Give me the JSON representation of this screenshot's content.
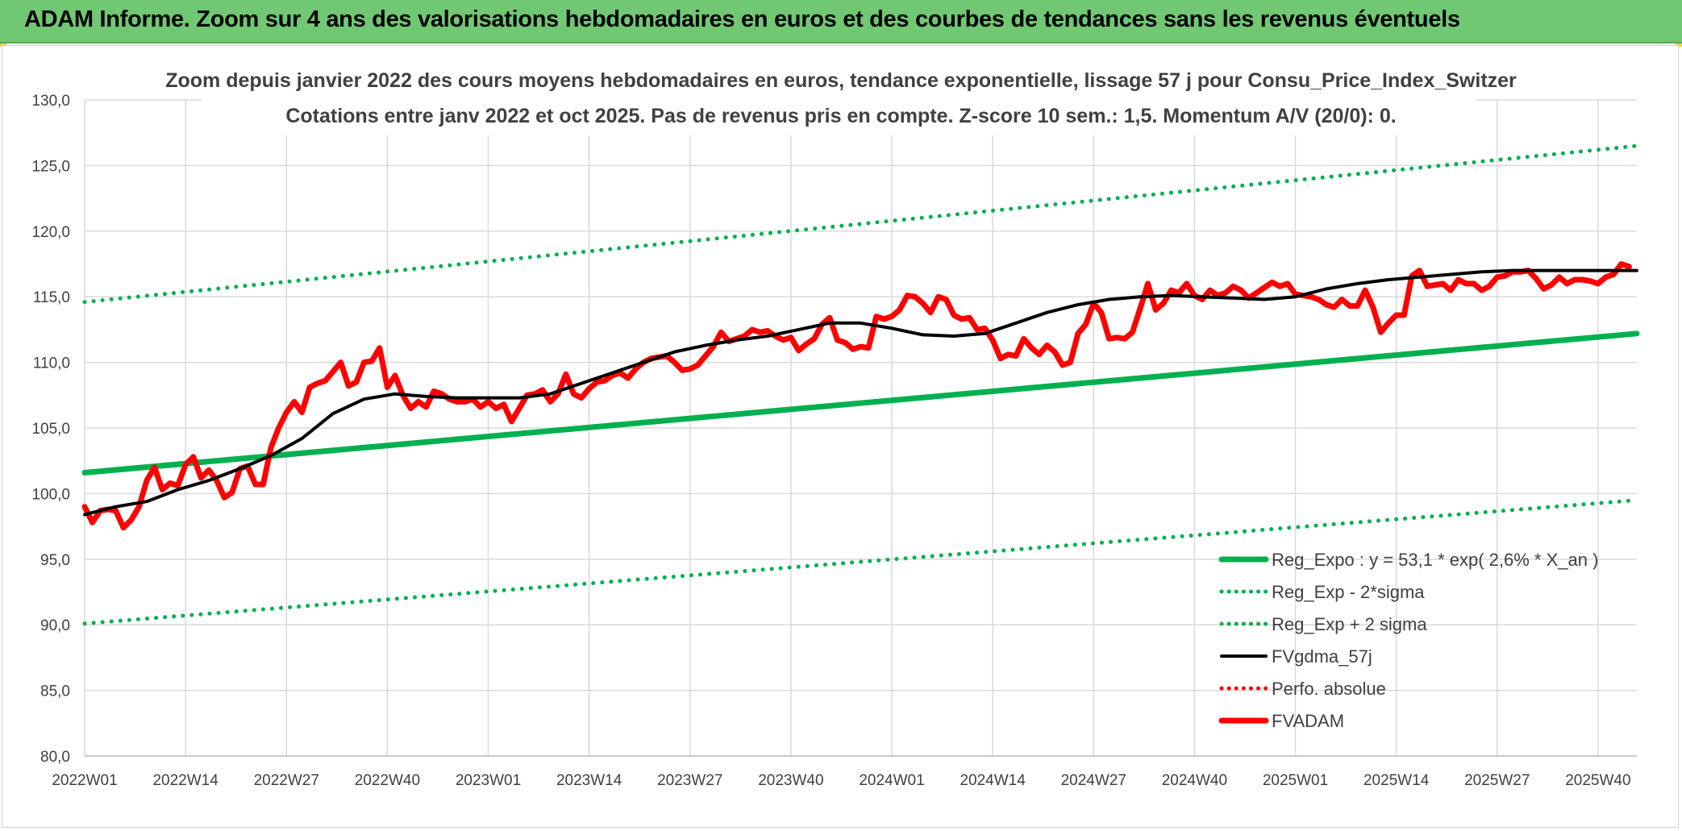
{
  "banner": {
    "title": "ADAM Informe. Zoom sur 4 ans des valorisations hebdomadaires en euros et des courbes de tendances sans les revenus éventuels"
  },
  "chart_data": {
    "type": "line",
    "title": "Zoom depuis janvier 2022 des cours moyens hebdomadaires en euros, tendance exponentielle, lissage 57 j pour Consu_Price_Index_Switzer",
    "subtitle": "Cotations entre janv 2022 et oct 2025. Pas de revenus pris en compte. Z-score 10 sem.: 1,5. Momentum A/V (20/0): 0.",
    "xlabel": "",
    "ylabel": "",
    "ylim": [
      80,
      130
    ],
    "y_ticks": [
      "130,0",
      "125,0",
      "120,0",
      "115,0",
      "110,0",
      "105,0",
      "100,0",
      "95,0",
      "90,0",
      "85,0",
      "80,0"
    ],
    "x_ticks": [
      "2022W01",
      "2022W14",
      "2022W27",
      "2022W40",
      "2023W01",
      "2023W14",
      "2023W27",
      "2023W40",
      "2024W01",
      "2024W14",
      "2024W27",
      "2024W40",
      "2025W01",
      "2025W14",
      "2025W27",
      "2025W40"
    ],
    "x_range_weeks": [
      0,
      200
    ],
    "grid": true,
    "legend_position": "bottom-right",
    "series": [
      {
        "name": "Reg_Expo : y = 53,1 * exp( 2,6% *  X_an )",
        "color": "#00b050",
        "style": "solid-thick",
        "x": [
          0,
          200
        ],
        "values": [
          101.6,
          112.2
        ]
      },
      {
        "name": "Reg_Exp - 2*sigma",
        "color": "#00b050",
        "style": "dotted",
        "x": [
          0,
          200
        ],
        "values": [
          90.1,
          99.5
        ]
      },
      {
        "name": "Reg_Exp + 2 sigma",
        "color": "#00b050",
        "style": "dotted",
        "x": [
          0,
          200
        ],
        "values": [
          114.6,
          126.5
        ]
      },
      {
        "name": "FVgdma_57j",
        "color": "#000000",
        "style": "solid",
        "x": [
          0,
          4,
          8,
          12,
          16,
          20,
          24,
          28,
          32,
          36,
          40,
          44,
          48,
          52,
          56,
          60,
          64,
          68,
          72,
          76,
          80,
          84,
          88,
          92,
          96,
          100,
          104,
          108,
          112,
          116,
          120,
          124,
          128,
          132,
          136,
          140,
          144,
          148,
          152,
          156,
          160,
          164,
          168,
          172,
          176,
          180,
          184,
          188,
          192,
          196,
          200
        ],
        "values": [
          98.4,
          99.0,
          99.4,
          100.3,
          101.0,
          101.9,
          102.9,
          104.2,
          106.1,
          107.2,
          107.6,
          107.4,
          107.3,
          107.3,
          107.3,
          107.6,
          108.4,
          109.2,
          110.0,
          110.8,
          111.3,
          111.7,
          112.0,
          112.5,
          113.0,
          113.0,
          112.6,
          112.1,
          112.0,
          112.2,
          113.0,
          113.8,
          114.4,
          114.8,
          115.0,
          115.1,
          115.0,
          114.9,
          114.8,
          115.0,
          115.6,
          116.0,
          116.3,
          116.5,
          116.7,
          116.9,
          117.0,
          117.0,
          117.0,
          117.0,
          117.0
        ]
      },
      {
        "name": "Perfo. absolue",
        "color": "#ff0000",
        "style": "dotted",
        "x": [],
        "values": []
      },
      {
        "name": "FVADAM",
        "color": "#ff0000",
        "style": "solid-thick",
        "x": [
          0,
          1,
          2,
          3,
          4,
          5,
          6,
          7,
          8,
          9,
          10,
          11,
          12,
          13,
          14,
          15,
          16,
          17,
          18,
          19,
          20,
          21,
          22,
          23,
          24,
          25,
          26,
          27,
          28,
          29,
          30,
          31,
          32,
          33,
          34,
          35,
          36,
          37,
          38,
          39,
          40,
          41,
          42,
          43,
          44,
          45,
          46,
          47,
          48,
          49,
          50,
          51,
          52,
          53,
          54,
          55,
          56,
          57,
          58,
          59,
          60,
          61,
          62,
          63,
          64,
          65,
          66,
          67,
          68,
          69,
          70,
          71,
          72,
          73,
          74,
          75,
          76,
          77,
          78,
          79,
          80,
          81,
          82,
          83,
          84,
          85,
          86,
          87,
          88,
          89,
          90,
          91,
          92,
          93,
          94,
          95,
          96,
          97,
          98,
          99,
          100,
          101,
          102,
          103,
          104,
          105,
          106,
          107,
          108,
          109,
          110,
          111,
          112,
          113,
          114,
          115,
          116,
          117,
          118,
          119,
          120,
          121,
          122,
          123,
          124,
          125,
          126,
          127,
          128,
          129,
          130,
          131,
          132,
          133,
          134,
          135,
          136,
          137,
          138,
          139,
          140,
          141,
          142,
          143,
          144,
          145,
          146,
          147,
          148,
          149,
          150,
          151,
          152,
          153,
          154,
          155,
          156,
          157,
          158,
          159,
          160,
          161,
          162,
          163,
          164,
          165,
          166,
          167,
          168,
          169,
          170,
          171,
          172,
          173,
          174,
          175,
          176,
          177,
          178,
          179,
          180,
          181,
          182,
          183,
          184,
          185,
          186,
          187,
          188,
          189,
          190,
          191,
          192,
          193,
          194,
          195,
          196,
          197,
          198,
          199
        ],
        "values": [
          99.0,
          97.8,
          98.7,
          98.8,
          98.7,
          97.4,
          98.0,
          99.0,
          101.0,
          102.0,
          100.3,
          100.8,
          100.6,
          102.2,
          102.8,
          101.2,
          101.8,
          101.0,
          99.7,
          100.1,
          101.9,
          102.1,
          100.7,
          100.7,
          103.5,
          105.0,
          106.2,
          107.0,
          106.2,
          108.1,
          108.4,
          108.6,
          109.3,
          110.0,
          108.2,
          108.5,
          110.0,
          110.1,
          111.1,
          108.1,
          109.0,
          107.5,
          106.5,
          107.0,
          106.6,
          107.8,
          107.6,
          107.2,
          107.0,
          107.0,
          107.2,
          106.6,
          107.0,
          106.5,
          106.8,
          105.5,
          106.5,
          107.5,
          107.6,
          107.9,
          107.0,
          107.6,
          109.1,
          107.6,
          107.3,
          108.0,
          108.5,
          108.6,
          109.0,
          109.2,
          108.8,
          109.5,
          110.0,
          110.3,
          110.4,
          110.5,
          110.0,
          109.4,
          109.5,
          109.8,
          110.5,
          111.2,
          112.3,
          111.6,
          111.8,
          112.0,
          112.5,
          112.3,
          112.4,
          112.0,
          111.7,
          111.9,
          110.9,
          111.4,
          111.8,
          112.9,
          113.4,
          111.7,
          111.5,
          111.0,
          111.2,
          111.1,
          113.5,
          113.3,
          113.5,
          114.0,
          115.1,
          115.0,
          114.5,
          113.8,
          115.0,
          114.8,
          113.6,
          113.3,
          113.4,
          112.5,
          112.6,
          111.7,
          110.3,
          110.6,
          110.5,
          111.8,
          111.1,
          110.6,
          111.3,
          110.8,
          109.8,
          110.0,
          112.2,
          112.9,
          114.5,
          113.8,
          111.8,
          111.9,
          111.8,
          112.3,
          114.1,
          116.0,
          114.0,
          114.5,
          115.5,
          115.3,
          116.0,
          115.1,
          114.8,
          115.5,
          115.1,
          115.3,
          115.8,
          115.5,
          114.9,
          115.3,
          115.7,
          116.1,
          115.8,
          116.0,
          115.2,
          115.1,
          115.0,
          114.8,
          114.4,
          114.2,
          114.8,
          114.3,
          114.3,
          115.5,
          114.2,
          112.3,
          113.0,
          113.6,
          113.6,
          116.6,
          117.0,
          115.8,
          115.9,
          116.0,
          115.5,
          116.3,
          116.0,
          116.0,
          115.5,
          115.8,
          116.5,
          116.6,
          116.9,
          116.9,
          117.0,
          116.4,
          115.6,
          115.9,
          116.5,
          116.0,
          116.3,
          116.3,
          116.2,
          116.0,
          116.5,
          116.7,
          117.5,
          117.3
        ]
      }
    ]
  }
}
